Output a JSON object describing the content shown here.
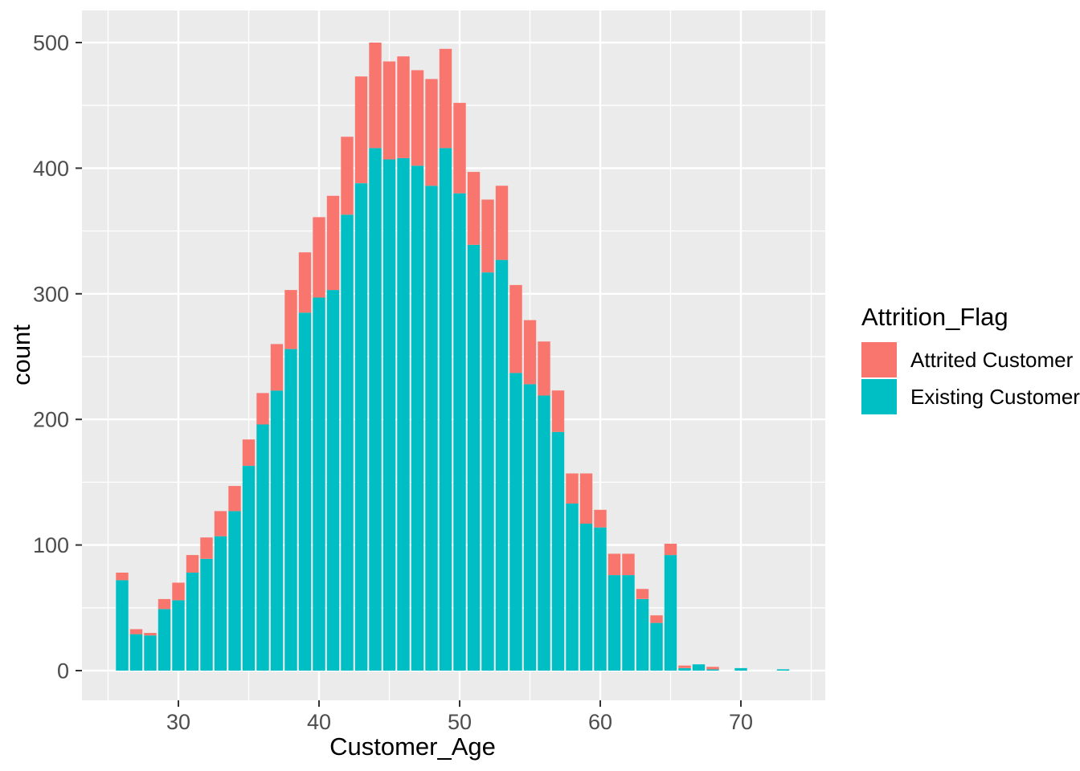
{
  "chart_data": {
    "type": "bar",
    "subtype": "stacked-histogram",
    "title": "",
    "xlabel": "Customer_Age",
    "ylabel": "count",
    "legend_title": "Attrition_Flag",
    "legend_position": "right",
    "panel_background": "#EBEBEB",
    "grid_color": "#FFFFFF",
    "tick_mark_color": "#333333",
    "tick_label_color": "#4D4D4D",
    "grid": true,
    "xlim": [
      23.1,
      76.0
    ],
    "ylim": [
      -25,
      525
    ],
    "x_ticks": [
      30,
      40,
      50,
      60,
      70
    ],
    "x_tick_labels": [
      "30",
      "40",
      "50",
      "60",
      "70"
    ],
    "x_minor_ticks": [
      25,
      35,
      45,
      55,
      65,
      75
    ],
    "y_ticks": [
      0,
      100,
      200,
      300,
      400,
      500
    ],
    "y_tick_labels": [
      "0",
      "100",
      "200",
      "300",
      "400",
      "500"
    ],
    "y_minor_ticks": [
      50,
      150,
      250,
      350,
      450
    ],
    "x": [
      26,
      27,
      28,
      29,
      30,
      31,
      32,
      33,
      34,
      35,
      36,
      37,
      38,
      39,
      40,
      41,
      42,
      43,
      44,
      45,
      46,
      47,
      48,
      49,
      50,
      51,
      52,
      53,
      54,
      55,
      56,
      57,
      58,
      59,
      60,
      61,
      62,
      63,
      64,
      65,
      66,
      67,
      68,
      70,
      73
    ],
    "series": [
      {
        "name": "Attrited Customer",
        "color": "#F8766D",
        "stack_order": "top",
        "values": [
          6,
          4,
          2,
          8,
          14,
          14,
          17,
          20,
          20,
          21,
          25,
          37,
          47,
          48,
          64,
          75,
          62,
          85,
          84,
          78,
          81,
          76,
          85,
          79,
          72,
          58,
          58,
          59,
          70,
          51,
          43,
          33,
          24,
          40,
          14,
          17,
          17,
          8,
          6,
          9,
          2,
          0,
          2,
          0,
          0
        ]
      },
      {
        "name": "Existing Customer",
        "color": "#00BFC4",
        "stack_order": "bottom",
        "values": [
          72,
          29,
          28,
          49,
          56,
          78,
          89,
          107,
          127,
          163,
          196,
          223,
          256,
          285,
          297,
          303,
          363,
          388,
          416,
          407,
          408,
          402,
          386,
          416,
          380,
          339,
          317,
          327,
          237,
          228,
          219,
          190,
          133,
          117,
          114,
          76,
          76,
          57,
          38,
          92,
          2,
          5,
          1,
          2,
          1
        ]
      }
    ]
  }
}
